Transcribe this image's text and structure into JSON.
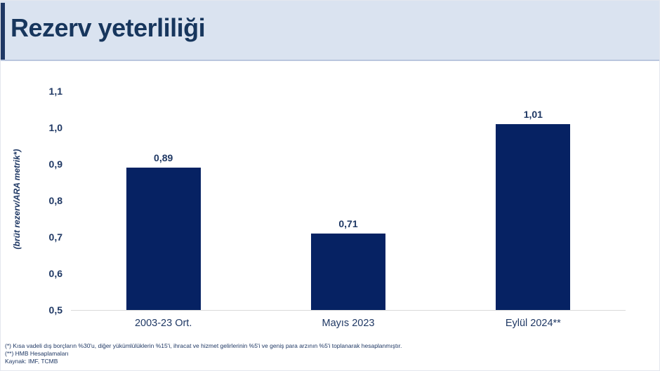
{
  "header": {
    "title": "Rezerv yeterliliği"
  },
  "chart_data": {
    "type": "bar",
    "title": "Rezerv yeterliliği",
    "categories": [
      "2003-23 Ort.",
      "Mayıs 2023",
      "Eylül 2024**"
    ],
    "values": [
      0.89,
      0.71,
      1.01
    ],
    "value_labels": [
      "0,89",
      "0,71",
      "1,01"
    ],
    "xlabel": "",
    "ylabel": "(brüt rezerv/ARA metrik*)",
    "ylim": [
      0.5,
      1.1
    ],
    "yticks": [
      {
        "value": 1.1,
        "label": "1,1"
      },
      {
        "value": 1.0,
        "label": "1,0"
      },
      {
        "value": 0.9,
        "label": "0,9"
      },
      {
        "value": 0.8,
        "label": "0,8"
      },
      {
        "value": 0.7,
        "label": "0,7"
      },
      {
        "value": 0.6,
        "label": "0,6"
      },
      {
        "value": 0.5,
        "label": "0,5"
      }
    ],
    "grid": false,
    "legend": false,
    "bar_color": "#062263"
  },
  "footnotes": {
    "lines": [
      "(*) Kısa vadeli dış borçların %30'u, diğer yükümlülüklerin %15'i, ihracat ve hizmet gelirlerinin %5'i ve geniş para arzının %5'i toplanarak hesaplanmıştır.",
      "(**) HMB Hesaplamaları",
      "Kaynak: IMF, TCMB"
    ]
  },
  "colors": {
    "band": "#dae3f0",
    "band_edge": "#b9c6de",
    "accent": "#1f3864",
    "title": "#17365d",
    "text": "#1f3864",
    "bar": "#062263",
    "axis_line": "#d9d9d9"
  }
}
